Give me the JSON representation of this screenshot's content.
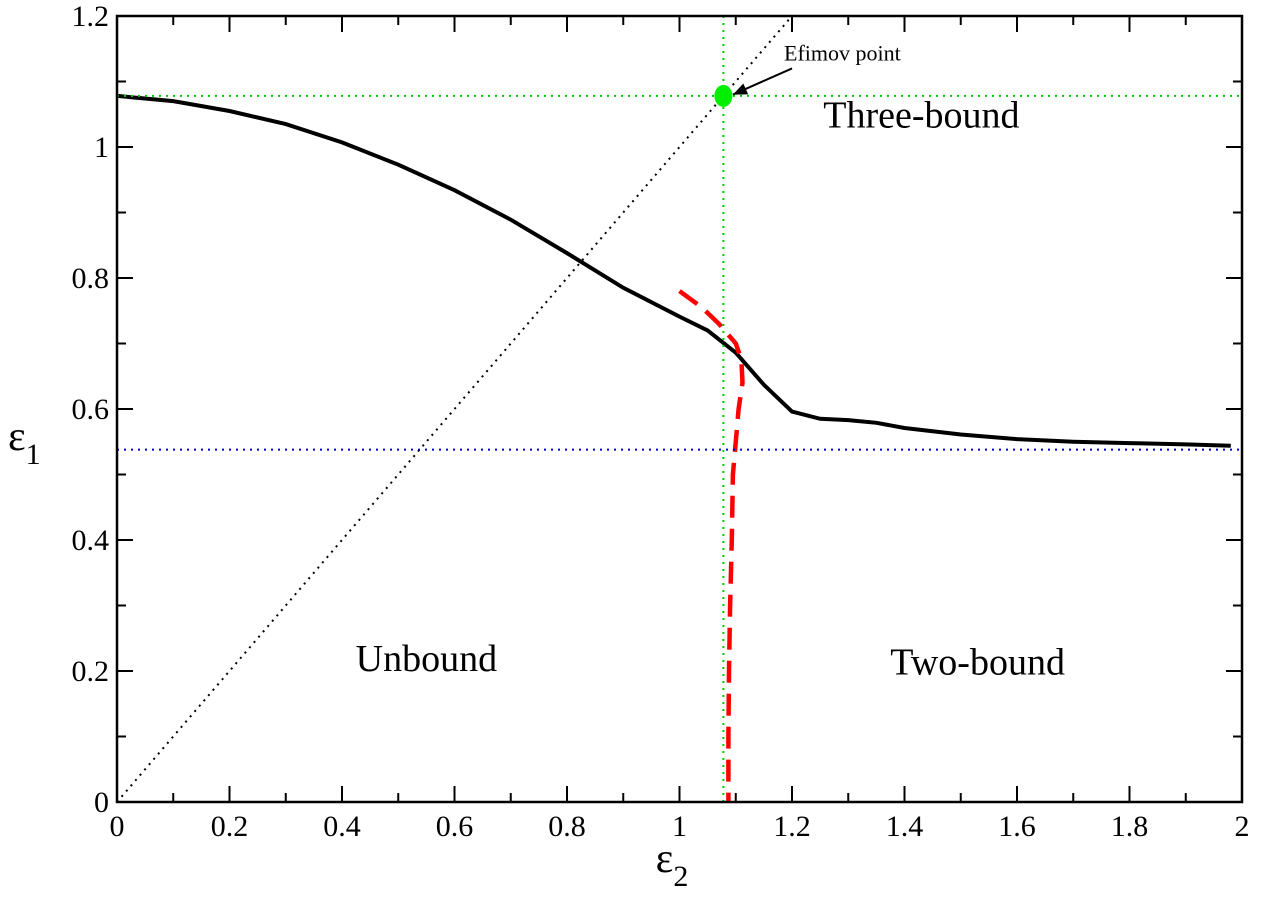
{
  "chart_data": {
    "type": "line",
    "xlabel": "ε",
    "xlabel_sub": "2",
    "ylabel": "ε",
    "ylabel_sub": "1",
    "xlim": [
      0,
      2
    ],
    "ylim": [
      0,
      1.2
    ],
    "x_major_ticks": [
      0,
      0.2,
      0.4,
      0.6,
      0.8,
      1,
      1.2,
      1.4,
      1.6,
      1.8,
      2
    ],
    "x_tick_labels": [
      "0",
      "0.2",
      "0.4",
      "0.6",
      "0.8",
      "1",
      "1.2",
      "1.4",
      "1.6",
      "1.8",
      "2"
    ],
    "y_major_ticks": [
      0,
      0.2,
      0.4,
      0.6,
      0.8,
      1,
      1.2
    ],
    "y_tick_labels": [
      "0",
      "0.2",
      "0.4",
      "0.6",
      "0.8",
      "1",
      "1.2"
    ],
    "x_minor_step": 0.1,
    "y_minor_step": 0.1,
    "grid": false,
    "series": [
      {
        "style": "solid",
        "color": "#000000",
        "points": [
          [
            0,
            1.078
          ],
          [
            0.1,
            1.07
          ],
          [
            0.2,
            1.055
          ],
          [
            0.3,
            1.035
          ],
          [
            0.4,
            1.007
          ],
          [
            0.5,
            0.973
          ],
          [
            0.6,
            0.934
          ],
          [
            0.7,
            0.889
          ],
          [
            0.8,
            0.838
          ],
          [
            0.9,
            0.785
          ],
          [
            1.0,
            0.741
          ],
          [
            1.05,
            0.72
          ],
          [
            1.1,
            0.686
          ],
          [
            1.15,
            0.637
          ],
          [
            1.2,
            0.596
          ],
          [
            1.25,
            0.585
          ],
          [
            1.3,
            0.583
          ],
          [
            1.35,
            0.579
          ],
          [
            1.4,
            0.571
          ],
          [
            1.5,
            0.561
          ],
          [
            1.6,
            0.554
          ],
          [
            1.7,
            0.55
          ],
          [
            1.8,
            0.548
          ],
          [
            1.9,
            0.546
          ],
          [
            1.98,
            0.544
          ]
        ]
      },
      {
        "style": "dashed",
        "color": "#ff0000",
        "points": [
          [
            1.0,
            0.78
          ],
          [
            1.04,
            0.755
          ],
          [
            1.07,
            0.73
          ],
          [
            1.1,
            0.7
          ],
          [
            1.11,
            0.675
          ],
          [
            1.112,
            0.64
          ],
          [
            1.105,
            0.6
          ],
          [
            1.1,
            0.55
          ],
          [
            1.095,
            0.5
          ],
          [
            1.093,
            0.4
          ],
          [
            1.09,
            0.3
          ],
          [
            1.088,
            0.2
          ],
          [
            1.087,
            0.1
          ],
          [
            1.087,
            0
          ]
        ]
      },
      {
        "style": "dotted",
        "color": "#000000",
        "points": [
          [
            0,
            0
          ],
          [
            1.2,
            1.2
          ]
        ]
      },
      {
        "style": "dotted",
        "color": "#00cc00",
        "points": [
          [
            0,
            1.078
          ],
          [
            2,
            1.078
          ]
        ]
      },
      {
        "style": "dotted",
        "color": "#00cc00",
        "points": [
          [
            1.078,
            0
          ],
          [
            1.078,
            1.2
          ]
        ]
      },
      {
        "style": "dotted",
        "color": "#0000cc",
        "points": [
          [
            0,
            0.538
          ],
          [
            2,
            0.538
          ]
        ]
      }
    ],
    "marker": {
      "x": 1.078,
      "y": 1.078,
      "color": "#00ee00"
    },
    "annotations": [
      {
        "text": "Efimov point",
        "x": 1.2,
        "y": 1.12,
        "arrow_to": [
          1.095,
          1.08
        ]
      }
    ],
    "regions": [
      {
        "text": "Three-bound",
        "x": 1.43,
        "y": 1.03
      },
      {
        "text": "Unbound",
        "x": 0.55,
        "y": 0.2
      },
      {
        "text": "Two-bound",
        "x": 1.53,
        "y": 0.195
      }
    ]
  }
}
